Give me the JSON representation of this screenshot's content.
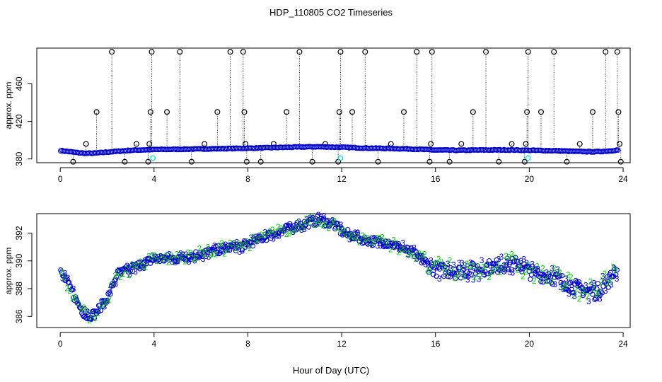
{
  "page": {
    "title": "HDP_110805  CO2 Timeseries",
    "xlabel": "Hour of Day (UTC)"
  },
  "chart_data": [
    {
      "type": "scatter",
      "panel": "top",
      "ylabel": "approx. ppm",
      "xlim": [
        -1,
        24.3
      ],
      "ylim": [
        376,
        498
      ],
      "xticks": [
        0,
        4,
        8,
        12,
        16,
        20,
        24
      ],
      "yticks": [
        380,
        420,
        460
      ],
      "colors": {
        "main": "#0000cc",
        "flag": "#00dddd",
        "outlier": "#000000"
      },
      "baseline_knots": [
        [
          0,
          389
        ],
        [
          0.3,
          388
        ],
        [
          0.8,
          386.5
        ],
        [
          1.1,
          386
        ],
        [
          1.5,
          386.2
        ],
        [
          2.1,
          387.5
        ],
        [
          3.0,
          389.2
        ],
        [
          4.0,
          390
        ],
        [
          5.0,
          390.3
        ],
        [
          6.0,
          390.6
        ],
        [
          7.0,
          391
        ],
        [
          7.8,
          391.3
        ],
        [
          9.0,
          392
        ],
        [
          10.0,
          392.6
        ],
        [
          11.0,
          393
        ],
        [
          12.0,
          392.4
        ],
        [
          13.0,
          391.6
        ],
        [
          14.0,
          391.2
        ],
        [
          15.0,
          390.6
        ],
        [
          16.0,
          389.5
        ],
        [
          17.0,
          389.2
        ],
        [
          18.0,
          389.5
        ],
        [
          19.0,
          389.6
        ],
        [
          20.0,
          389.2
        ],
        [
          21.0,
          388.8
        ],
        [
          22.0,
          388
        ],
        [
          22.8,
          387.6
        ],
        [
          23.4,
          388.5
        ],
        [
          23.75,
          389.5
        ]
      ],
      "flag_points": [
        [
          3.95,
          381
        ],
        [
          11.95,
          381
        ],
        [
          19.95,
          381
        ]
      ],
      "outliers": [
        [
          0.55,
          377
        ],
        [
          1.1,
          396
        ],
        [
          1.55,
          430
        ],
        [
          2.2,
          494
        ],
        [
          2.75,
          377
        ],
        [
          3.25,
          396
        ],
        [
          3.75,
          377
        ],
        [
          3.8,
          396
        ],
        [
          3.85,
          430
        ],
        [
          3.9,
          494
        ],
        [
          4.55,
          430
        ],
        [
          5.1,
          494
        ],
        [
          5.6,
          377
        ],
        [
          6.15,
          396
        ],
        [
          6.7,
          430
        ],
        [
          7.25,
          494
        ],
        [
          7.8,
          494
        ],
        [
          7.85,
          430
        ],
        [
          7.9,
          396
        ],
        [
          7.95,
          377
        ],
        [
          8.55,
          377
        ],
        [
          9.1,
          396
        ],
        [
          9.65,
          430
        ],
        [
          10.2,
          494
        ],
        [
          10.75,
          377
        ],
        [
          11.3,
          396
        ],
        [
          11.85,
          377
        ],
        [
          11.9,
          430
        ],
        [
          11.95,
          494
        ],
        [
          12.45,
          430
        ],
        [
          13.0,
          494
        ],
        [
          13.55,
          377
        ],
        [
          14.1,
          396
        ],
        [
          14.65,
          430
        ],
        [
          15.2,
          494
        ],
        [
          15.75,
          377
        ],
        [
          15.8,
          396
        ],
        [
          15.85,
          494
        ],
        [
          16.6,
          377
        ],
        [
          17.1,
          396
        ],
        [
          17.6,
          430
        ],
        [
          18.15,
          494
        ],
        [
          18.7,
          377
        ],
        [
          19.25,
          396
        ],
        [
          19.8,
          377
        ],
        [
          19.85,
          396
        ],
        [
          19.9,
          430
        ],
        [
          19.95,
          494
        ],
        [
          20.5,
          430
        ],
        [
          21.05,
          494
        ],
        [
          21.6,
          377
        ],
        [
          22.15,
          396
        ],
        [
          22.7,
          430
        ],
        [
          23.25,
          494
        ],
        [
          23.75,
          494
        ],
        [
          23.8,
          430
        ],
        [
          23.85,
          396
        ],
        [
          23.9,
          377
        ]
      ]
    },
    {
      "type": "scatter",
      "panel": "bottom",
      "ylabel": "approx. ppm",
      "xlim": [
        -1,
        24.3
      ],
      "ylim": [
        385.2,
        393.4
      ],
      "xticks": [
        0,
        4,
        8,
        12,
        16,
        20,
        24
      ],
      "yticks": [
        386,
        388,
        390,
        392
      ],
      "series": [
        {
          "name": "2",
          "symbol": "2",
          "color": "#00cc00"
        },
        {
          "name": "3",
          "symbol": "3",
          "color": "#0000cc"
        }
      ],
      "baseline_knots": [
        [
          0,
          389.2
        ],
        [
          0.3,
          388.4
        ],
        [
          0.8,
          386.8
        ],
        [
          1.1,
          386
        ],
        [
          1.5,
          386.2
        ],
        [
          2.1,
          387.6
        ],
        [
          2.4,
          389
        ],
        [
          3.0,
          389.4
        ],
        [
          3.5,
          389.8
        ],
        [
          4.0,
          390.1
        ],
        [
          5.0,
          390.2
        ],
        [
          6.0,
          390.5
        ],
        [
          7.0,
          390.9
        ],
        [
          7.8,
          391.1
        ],
        [
          9.0,
          391.9
        ],
        [
          10.0,
          392.5
        ],
        [
          11.0,
          392.9
        ],
        [
          11.6,
          392.7
        ],
        [
          12.0,
          392.1
        ],
        [
          13.0,
          391.5
        ],
        [
          14.0,
          391.3
        ],
        [
          15.0,
          390.6
        ],
        [
          15.6,
          389.8
        ],
        [
          16.0,
          389.4
        ],
        [
          17.0,
          389.2
        ],
        [
          18.0,
          389.5
        ],
        [
          19.0,
          389.7
        ],
        [
          19.5,
          389.8
        ],
        [
          20.0,
          389.2
        ],
        [
          21.0,
          388.8
        ],
        [
          22.0,
          388.1
        ],
        [
          22.8,
          387.7
        ],
        [
          23.4,
          388.6
        ],
        [
          23.75,
          389.6
        ]
      ],
      "noise_amplitude": 0.45
    }
  ]
}
